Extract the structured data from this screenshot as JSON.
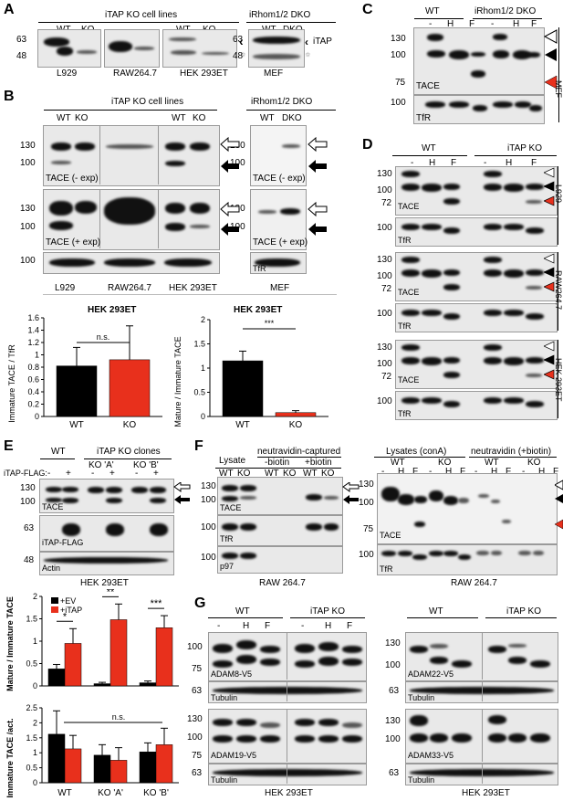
{
  "panels": {
    "A": {
      "label": "A",
      "header_left": "iTAP KO cell lines",
      "header_right": "iRhom1/2 DKO",
      "lanes_wt_ko": [
        "WT",
        "KO"
      ],
      "lanes_wt_dko": [
        "WT",
        "DKO"
      ],
      "mw": [
        "63",
        "48"
      ],
      "cells": [
        "L929",
        "RAW264.7",
        "HEK 293ET",
        "MEF"
      ],
      "itap_label": "iTAP",
      "arrow": "‹",
      "star": "*"
    },
    "B": {
      "label": "B",
      "header_left": "iTAP KO cell lines",
      "header_right": "iRhom1/2 DKO",
      "lanes_wt_ko": [
        "WT",
        "KO"
      ],
      "lanes_wt_dko": [
        "WT",
        "DKO"
      ],
      "mw_tace": [
        "130",
        "100"
      ],
      "mw_tfr": "100",
      "tace_minus": "TACE (- exp)",
      "tace_plus": "TACE (+ exp)",
      "tfr": "TfR",
      "cells": [
        "L929",
        "RAW264.7",
        "HEK 293ET",
        "MEF"
      ],
      "chart1": {
        "title": "HEK 293ET",
        "ylabel": "Immature TACE / TfR",
        "yticks": [
          "0",
          "0.2",
          "0.4",
          "0.6",
          "0.8",
          "1",
          "1.2",
          "1.4",
          "1.6"
        ],
        "sig": "n.s."
      },
      "chart2": {
        "title": "HEK 293ET",
        "ylabel": "Mature / Immature TACE",
        "yticks": [
          "0",
          "0.5",
          "1",
          "1.5",
          "2"
        ],
        "sig": "***"
      }
    },
    "C": {
      "label": "C",
      "header_wt": "WT",
      "header_dko": "iRhom1/2 DKO",
      "lanes": [
        "-",
        "H",
        "F",
        "-",
        "H",
        "F"
      ],
      "mw": [
        "130",
        "100",
        "75",
        "100"
      ],
      "tace": "TACE",
      "tfr": "TfR",
      "side": "MEF"
    },
    "D": {
      "label": "D",
      "header_wt": "WT",
      "header_ko": "iTAP KO",
      "lanes": [
        "-",
        "H",
        "F",
        "-",
        "H",
        "F"
      ],
      "mw": [
        "130",
        "100",
        "72",
        "100"
      ],
      "tace": "TACE",
      "tfr": "TfR",
      "sides": [
        "L929",
        "RAW264.7",
        "HEK 293ET"
      ]
    },
    "E": {
      "label": "E",
      "row_label": "iTAP-FLAG:",
      "header_wt": "WT",
      "header_ko": "iTAP KO clones",
      "clones": [
        "KO 'A'",
        "KO 'B'"
      ],
      "pm": [
        "-",
        "+",
        "-",
        "+",
        "-",
        "+"
      ],
      "mw": [
        "130",
        "100",
        "63",
        "48"
      ],
      "tace": "TACE",
      "itapflag": "iTAP-FLAG",
      "actin": "Actin",
      "cell": "HEK 293ET",
      "chart1": {
        "ylabel": "Mature / Immature TACE",
        "yticks": [
          "0",
          "0.5",
          "1",
          "1.5",
          "2"
        ],
        "legend": [
          "+EV",
          "+iTAP"
        ],
        "sig": [
          "*",
          "**",
          "***"
        ]
      },
      "chart2": {
        "ylabel": "Immature TACE /act.",
        "yticks": [
          "0",
          "0.5",
          "1",
          "1.5",
          "2",
          "2.5"
        ],
        "sig": "n.s.",
        "categories": [
          "WT",
          "KO 'A'",
          "KO 'B'"
        ]
      }
    },
    "F": {
      "label": "F",
      "left": {
        "lysate": "Lysate",
        "captured": "neutravidin-captured",
        "minus_biotin": "-biotin",
        "plus_biotin": "+biotin",
        "lanes": [
          "WT",
          "KO",
          "WT",
          "KO",
          "WT",
          "KO"
        ],
        "mw": [
          "130",
          "100",
          "100",
          "100"
        ],
        "tace": "TACE",
        "tfr": "TfR",
        "p97": "p97",
        "cell": "RAW 264.7"
      },
      "right": {
        "lysates": "Lysates (conA)",
        "neutravidin": "neutravidin (+biotin)",
        "groups": [
          "WT",
          "KO",
          "WT",
          "KO"
        ],
        "lanes": [
          "-",
          "H",
          "F",
          "-",
          "H",
          "F",
          "-",
          "H",
          "F",
          "-",
          "H",
          "F"
        ],
        "mw": [
          "130",
          "100",
          "75",
          "100"
        ],
        "tace": "TACE",
        "tfr": "TfR",
        "cell": "RAW 264.7"
      }
    },
    "G": {
      "label": "G",
      "header_wt": "WT",
      "header_ko": "iTAP KO",
      "lanes": [
        "-",
        "H",
        "F",
        "-",
        "H",
        "F"
      ],
      "adam8": "ADAM8-V5",
      "adam19": "ADAM19-V5",
      "adam22": "ADAM22-V5",
      "adam33": "ADAM33-V5",
      "tubulin": "Tubulin",
      "mw_left_top": [
        "100",
        "75",
        "63"
      ],
      "mw_left_bot": [
        "130",
        "100",
        "75",
        "63"
      ],
      "mw_right_top": [
        "130",
        "100",
        "63"
      ],
      "mw_right_bot": [
        "130",
        "100",
        "63"
      ],
      "cell": "HEK 293ET"
    }
  },
  "colors": {
    "wt": "#000000",
    "ko": "#e8301c",
    "open_arrow": "#ffffff",
    "red_arrow": "#e8301c"
  },
  "chart_data": [
    {
      "type": "bar",
      "title": "HEK 293ET",
      "ylabel": "Immature TACE / TfR",
      "categories": [
        "WT",
        "KO"
      ],
      "values": [
        0.82,
        0.92
      ],
      "errors": [
        0.3,
        0.55
      ],
      "ylim": [
        0,
        1.6
      ],
      "colors": [
        "#000000",
        "#e8301c"
      ]
    },
    {
      "type": "bar",
      "title": "HEK 293ET",
      "ylabel": "Mature / Immature TACE",
      "categories": [
        "WT",
        "KO"
      ],
      "values": [
        1.15,
        0.08
      ],
      "errors": [
        0.2,
        0.04
      ],
      "ylim": [
        0,
        2
      ],
      "colors": [
        "#000000",
        "#e8301c"
      ]
    },
    {
      "type": "bar",
      "ylabel": "Mature / Immature TACE",
      "categories": [
        "WT",
        "KO 'A'",
        "KO 'B'"
      ],
      "series": [
        {
          "name": "+EV",
          "values": [
            0.38,
            0.05,
            0.07
          ],
          "errors": [
            0.1,
            0.03,
            0.04
          ]
        },
        {
          "name": "+iTAP",
          "values": [
            0.95,
            1.48,
            1.3
          ],
          "errors": [
            0.33,
            0.35,
            0.27
          ]
        }
      ],
      "ylim": [
        0,
        2
      ]
    },
    {
      "type": "bar",
      "ylabel": "Immature TACE /act.",
      "categories": [
        "WT",
        "KO 'A'",
        "KO 'B'"
      ],
      "series": [
        {
          "name": "+EV",
          "values": [
            1.62,
            0.92,
            1.03
          ],
          "errors": [
            0.78,
            0.35,
            0.3
          ]
        },
        {
          "name": "+iTAP",
          "values": [
            1.13,
            0.75,
            1.27
          ],
          "errors": [
            0.45,
            0.42,
            0.55
          ]
        }
      ],
      "ylim": [
        0,
        2.5
      ]
    }
  ]
}
